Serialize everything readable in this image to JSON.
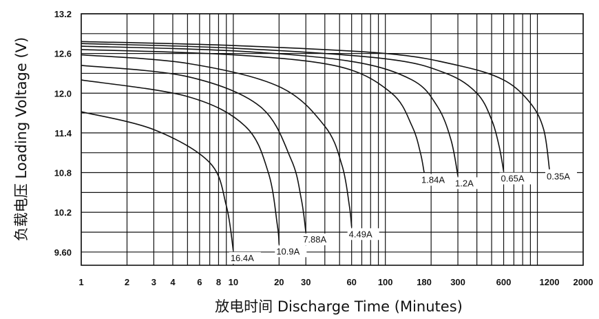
{
  "chart_data": {
    "type": "line",
    "title": "",
    "xlabel": "放电时间 Discharge Time (Minutes)",
    "ylabel": "负载电压 Loading Voltage (V)",
    "x_scale": "log",
    "xlim": [
      1,
      2000
    ],
    "ylim": [
      9.4,
      13.2
    ],
    "grid": true,
    "x_ticks": [
      1,
      2,
      3,
      4,
      6,
      8,
      10,
      20,
      30,
      60,
      100,
      180,
      300,
      600,
      1200,
      2000
    ],
    "x_tick_labels": [
      "1",
      "2",
      "3",
      "4",
      "6",
      "8",
      "10",
      "20",
      "30",
      "60",
      "100",
      "180",
      "300",
      "600",
      "1200",
      "2000"
    ],
    "x_gridlines": [
      1,
      2,
      3,
      4,
      5,
      6,
      7,
      8,
      9,
      10,
      20,
      30,
      40,
      50,
      60,
      70,
      80,
      90,
      100,
      200,
      300,
      400,
      500,
      600,
      700,
      800,
      900,
      1000,
      2000
    ],
    "y_ticks": [
      9.6,
      10.2,
      10.8,
      11.4,
      12.0,
      12.6,
      13.2
    ],
    "y_tick_labels": [
      "9.60",
      "10.2",
      "10.8",
      "11.4",
      "12.0",
      "12.6",
      "13.2"
    ],
    "y_gridlines": [
      9.6,
      9.9,
      10.2,
      10.5,
      10.8,
      11.1,
      11.4,
      11.7,
      12.0,
      12.3,
      12.6,
      12.9,
      13.2
    ],
    "series": [
      {
        "name": "0.35A",
        "label": "0.35A",
        "x": [
          1,
          10,
          100,
          300,
          600,
          900,
          1100,
          1200
        ],
        "y": [
          12.78,
          12.72,
          12.6,
          12.42,
          12.2,
          11.85,
          11.45,
          10.85
        ]
      },
      {
        "name": "0.65A",
        "label": "0.65A",
        "x": [
          1,
          10,
          100,
          250,
          400,
          500,
          560,
          600
        ],
        "y": [
          12.75,
          12.68,
          12.52,
          12.3,
          12.0,
          11.6,
          11.2,
          10.82
        ]
      },
      {
        "name": "1.2A",
        "label": "1.2A",
        "x": [
          1,
          10,
          60,
          150,
          220,
          270,
          300
        ],
        "y": [
          12.71,
          12.64,
          12.48,
          12.2,
          11.8,
          11.3,
          10.75
        ]
      },
      {
        "name": "1.84A",
        "label": "1.84A",
        "x": [
          1,
          10,
          50,
          110,
          150,
          170,
          180
        ],
        "y": [
          12.66,
          12.58,
          12.4,
          12.0,
          11.5,
          11.1,
          10.8
        ]
      },
      {
        "name": "4.49A",
        "label": "4.49A",
        "x": [
          1,
          5,
          20,
          40,
          52,
          58,
          60
        ],
        "y": [
          12.58,
          12.45,
          12.1,
          11.5,
          10.9,
          10.3,
          9.98
        ]
      },
      {
        "name": "7.88A",
        "label": "7.88A",
        "x": [
          1,
          5,
          15,
          24,
          28,
          30
        ],
        "y": [
          12.42,
          12.25,
          11.8,
          11.0,
          10.4,
          9.9
        ]
      },
      {
        "name": "10.9A",
        "label": "10.9A",
        "x": [
          1,
          5,
          12,
          17,
          19.5,
          20
        ],
        "y": [
          12.2,
          11.95,
          11.5,
          10.8,
          10.0,
          9.72
        ]
      },
      {
        "name": "16.4A",
        "label": "16.4A",
        "x": [
          1,
          3,
          7,
          9,
          10
        ],
        "y": [
          11.72,
          11.45,
          10.95,
          10.3,
          9.62
        ]
      }
    ]
  }
}
